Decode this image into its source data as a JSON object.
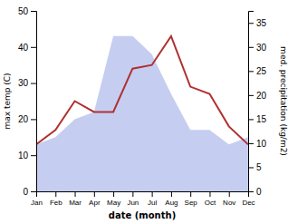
{
  "chart_data": {
    "type": "line",
    "xlabel": "date (month)",
    "ylabel": "max temp (C)",
    "y2label": "med. precipitation (kg/m2)",
    "categories": [
      "Jan",
      "Feb",
      "Mar",
      "Apr",
      "May",
      "Jun",
      "Jul",
      "Aug",
      "Sep",
      "Oct",
      "Nov",
      "Dec"
    ],
    "series": [
      {
        "type": "area",
        "color": "#c5cef0",
        "values": [
          13,
          15,
          20,
          22,
          43,
          43,
          38,
          27,
          17,
          17,
          13,
          15
        ]
      },
      {
        "type": "line",
        "color": "#b03030",
        "values": [
          13,
          17,
          25,
          22,
          22,
          34,
          35,
          43,
          29,
          27,
          18,
          13
        ]
      }
    ],
    "ylim": [
      0,
      50
    ],
    "yticks": [
      0,
      10,
      20,
      30,
      40,
      50
    ],
    "y2lim": [
      0,
      37.5
    ],
    "y2ticks": [
      0,
      5,
      10,
      15,
      20,
      25,
      30,
      35
    ],
    "grid": false
  }
}
